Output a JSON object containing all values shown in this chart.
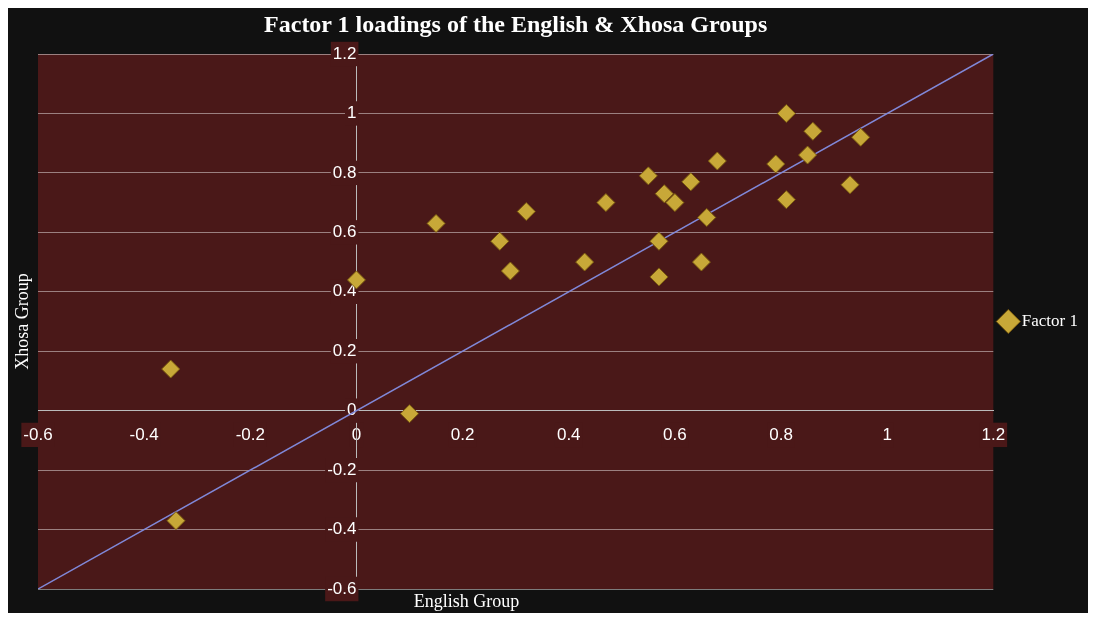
{
  "chart_data": {
    "type": "scatter",
    "title": "Factor 1 loadings of the English & Xhosa Groups",
    "xlabel": "English Group",
    "ylabel": "Xhosa Group",
    "xlim": [
      -0.6,
      1.2
    ],
    "xticks": [
      -0.6,
      -0.4,
      -0.2,
      0,
      0.2,
      0.4,
      0.6,
      0.8,
      1,
      1.2
    ],
    "ylim": [
      -0.6,
      1.2
    ],
    "yticks": [
      -0.6,
      -0.4,
      -0.2,
      0,
      0.2,
      0.4,
      0.6,
      0.8,
      1,
      1.2
    ],
    "grid": "y",
    "legend": "right",
    "marker": "diamond",
    "series": [
      {
        "name": "Factor 1",
        "color": "#c8a838",
        "x": [
          -0.35,
          -0.34,
          0,
          0.1,
          0.15,
          0.27,
          0.29,
          0.32,
          0.43,
          0.47,
          0.55,
          0.58,
          0.6,
          0.63,
          0.66,
          0.57,
          0.57,
          0.65,
          0.68,
          0.81,
          0.81,
          0.86,
          0.95,
          0.79,
          0.85,
          0.93
        ],
        "values": [
          0.14,
          -0.37,
          0.44,
          -0.01,
          0.63,
          0.57,
          0.47,
          0.67,
          0.5,
          0.7,
          0.79,
          0.73,
          0.7,
          0.77,
          0.65,
          0.57,
          0.45,
          0.5,
          0.84,
          0.71,
          1.0,
          0.94,
          0.92,
          0.83,
          0.86,
          0.76
        ]
      },
      {
        "type": "line",
        "color": "#8088d8",
        "marker": "none",
        "x": [
          -0.6,
          1.2
        ],
        "values": [
          -0.6,
          1.2
        ]
      }
    ]
  }
}
